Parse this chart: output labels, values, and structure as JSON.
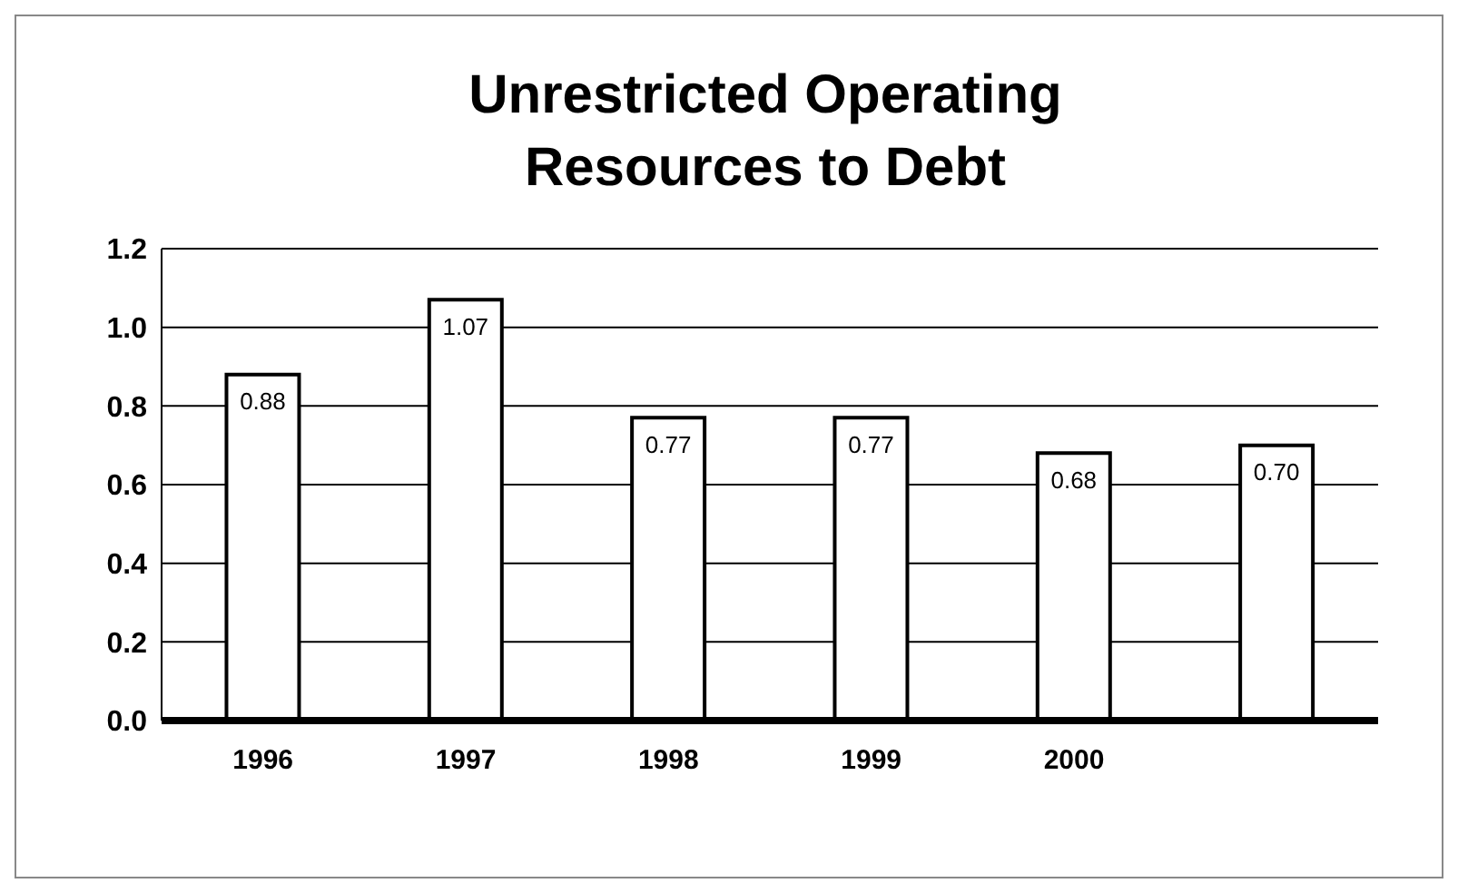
{
  "chart_data": {
    "type": "bar",
    "title": "Unrestricted Operating Resources to Debt",
    "categories": [
      "1996",
      "1997",
      "1998",
      "1999",
      "2000",
      null
    ],
    "values": [
      0.88,
      1.07,
      0.77,
      0.77,
      0.68,
      0.7
    ],
    "value_labels": [
      "0.88",
      "1.07",
      "0.77",
      "0.77",
      "0.68",
      "0.70"
    ],
    "color": "#ffffff",
    "ylim": [
      0,
      1.2
    ],
    "yticks": [
      {
        "value": 0,
        "label": "0.0"
      },
      0.2,
      0.4,
      0.6,
      0.8,
      {
        "value": 1,
        "label": "1.0"
      },
      1.2
    ],
    "grid": "y"
  }
}
